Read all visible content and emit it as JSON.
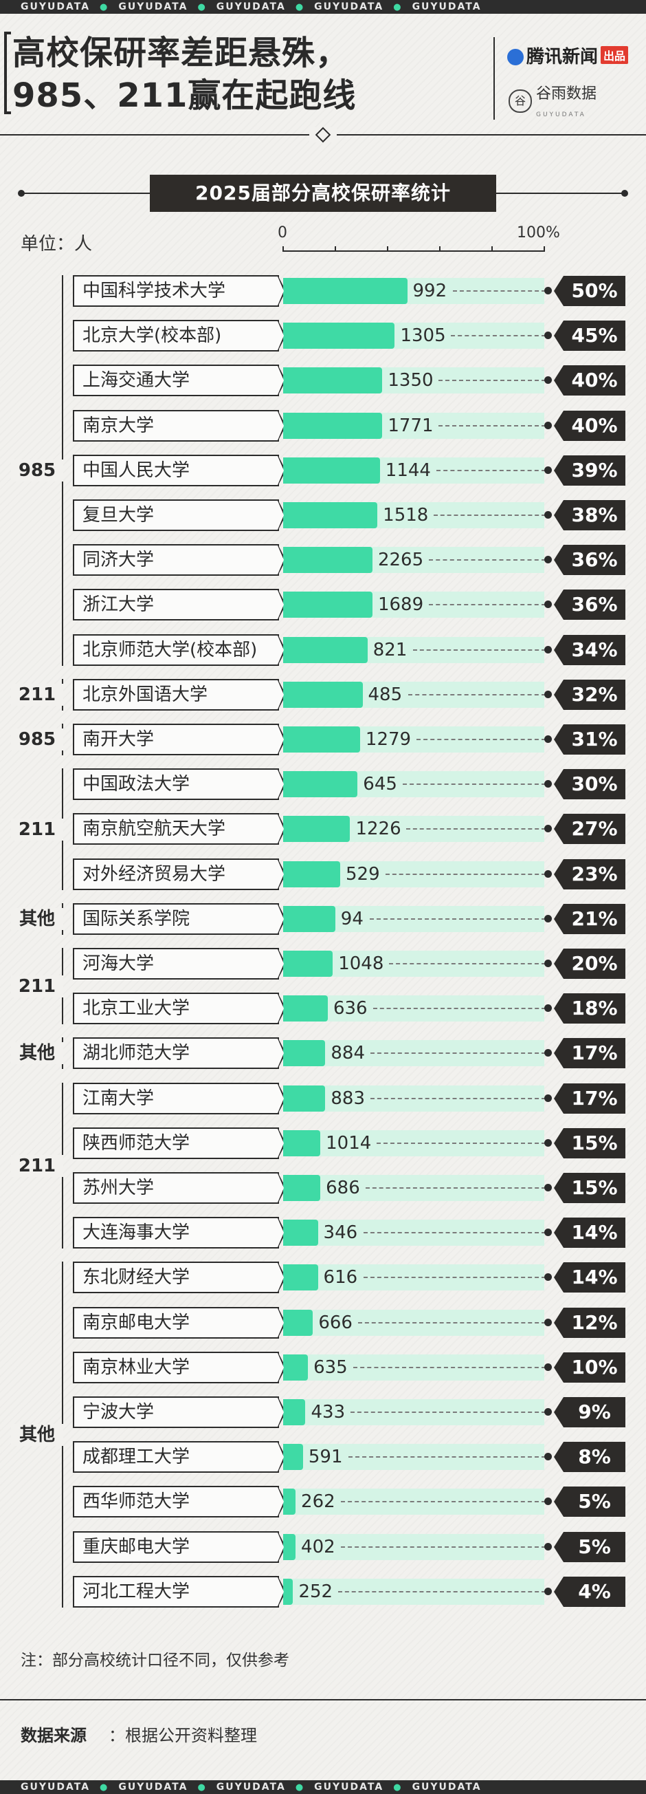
{
  "banner_text": "GUYUDATA",
  "title_line1": "高校保研率差距悬殊，",
  "title_line2": "985、211赢在起跑线",
  "logos": {
    "tencent": "腾讯新闻",
    "tencent_tag": "出品",
    "guyu": "谷雨数据",
    "guyu_sub": "GUYUDATA"
  },
  "subtitle": "2025届部分高校保研率统计",
  "unit_label": "单位：人",
  "axis": {
    "min_label": "0",
    "max_label": "100%"
  },
  "groups": [
    {
      "label": "985",
      "start": 0,
      "end": 8
    },
    {
      "label": "211",
      "start": 9,
      "end": 9
    },
    {
      "label": "985",
      "start": 10,
      "end": 10
    },
    {
      "label": "211",
      "start": 11,
      "end": 13
    },
    {
      "label": "其他",
      "start": 14,
      "end": 14
    },
    {
      "label": "211",
      "start": 15,
      "end": 16
    },
    {
      "label": "其他",
      "start": 17,
      "end": 17
    },
    {
      "label": "211",
      "start": 18,
      "end": 21
    },
    {
      "label": "其他",
      "start": 22,
      "end": 29
    }
  ],
  "chart_data": {
    "type": "bar",
    "orientation": "horizontal",
    "title": "2025届部分高校保研率统计",
    "xlim": [
      0,
      100
    ],
    "categories": [
      "中国科学技术大学",
      "北京大学(校本部)",
      "上海交通大学",
      "南京大学",
      "中国人民大学",
      "复旦大学",
      "同济大学",
      "浙江大学",
      "北京师范大学(校本部)",
      "北京外国语大学",
      "南开大学",
      "中国政法大学",
      "南京航空航天大学",
      "对外经济贸易大学",
      "国际关系学院",
      "河海大学",
      "北京工业大学",
      "湖北师范大学",
      "江南大学",
      "陕西师范大学",
      "苏州大学",
      "大连海事大学",
      "东北财经大学",
      "南京邮电大学",
      "南京林业大学",
      "宁波大学",
      "成都理工大学",
      "西华师范大学",
      "重庆邮电大学",
      "河北工程大学"
    ],
    "rates": [
      50,
      45,
      40,
      40,
      39,
      38,
      36,
      36,
      34,
      32,
      31,
      30,
      27,
      23,
      21,
      20,
      18,
      17,
      17,
      15,
      15,
      14,
      14,
      12,
      10,
      9,
      8,
      5,
      5,
      4
    ],
    "rate_labels": [
      "50%",
      "45%",
      "40%",
      "40%",
      "39%",
      "38%",
      "36%",
      "36%",
      "34%",
      "32%",
      "31%",
      "30%",
      "27%",
      "23%",
      "21%",
      "20%",
      "18%",
      "17%",
      "17%",
      "15%",
      "15%",
      "14%",
      "14%",
      "12%",
      "10%",
      "9%",
      "8%",
      "5%",
      "5%",
      "4%"
    ],
    "counts": [
      992,
      1305,
      1350,
      1771,
      1144,
      1518,
      2265,
      1689,
      821,
      485,
      1279,
      645,
      1226,
      529,
      94,
      1048,
      636,
      884,
      883,
      1014,
      686,
      346,
      616,
      666,
      635,
      433,
      591,
      262,
      402,
      252
    ],
    "count_unit": "人"
  },
  "note": "注：部分高校统计口径不同，仅供参考",
  "source_label": "数据来源",
  "source_text": "：根据公开资料整理"
}
